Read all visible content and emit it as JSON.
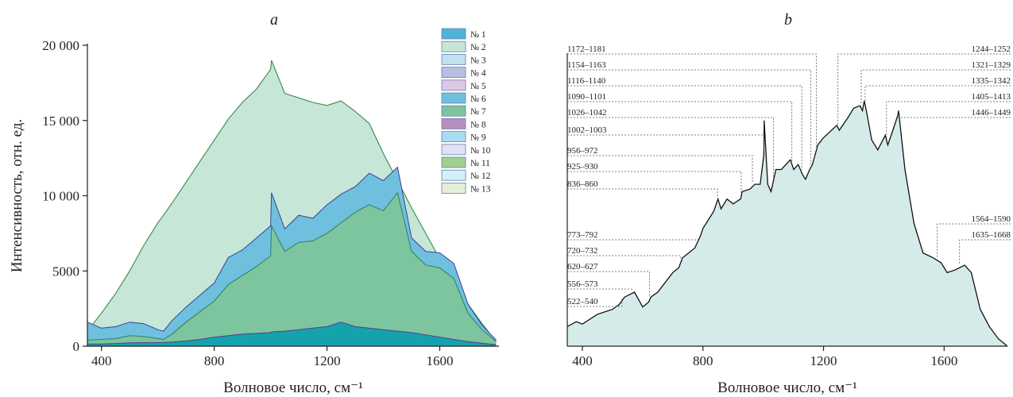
{
  "chart_data": [
    {
      "type": "area",
      "title": "a",
      "xlabel": "Волновое число, см⁻¹",
      "ylabel": "Интенсивность, отн. ед.",
      "xlim": [
        350,
        1810
      ],
      "ylim": [
        0,
        20000
      ],
      "xticks": [
        "400",
        "800",
        "1200",
        "1600"
      ],
      "yticks": [
        "0",
        "5000",
        "10 000",
        "15 000",
        "20 000"
      ],
      "legend_position": "top-right",
      "series": [
        {
          "name": "№ 1",
          "color": "#4fb3d9"
        },
        {
          "name": "№ 2",
          "color": "#c6e7d8"
        },
        {
          "name": "№ 3",
          "color": "#bfe3ee"
        },
        {
          "name": "№ 4",
          "color": "#b9bfe3"
        },
        {
          "name": "№ 5",
          "color": "#ddc8e4"
        },
        {
          "name": "№ 6",
          "color": "#6fc0de"
        },
        {
          "name": "№ 7",
          "color": "#7cc59e"
        },
        {
          "name": "№ 8",
          "color": "#b88ec1"
        },
        {
          "name": "№ 9",
          "color": "#a7dcf2"
        },
        {
          "name": "№ 10",
          "color": "#e2e2f2"
        },
        {
          "name": "№ 11",
          "color": "#9ed28e"
        },
        {
          "name": "№ 12",
          "color": "#d3effa"
        },
        {
          "name": "№ 13",
          "color": "#e3f0d7"
        }
      ],
      "curves": {
        "x": [
          350,
          400,
          450,
          500,
          550,
          600,
          620,
          650,
          700,
          750,
          800,
          850,
          900,
          950,
          1000,
          1003,
          1050,
          1100,
          1150,
          1200,
          1250,
          1300,
          1350,
          1400,
          1450,
          1500,
          1550,
          1600,
          1650,
          1700,
          1750,
          1800
        ],
        "upper": [
          1000,
          2200,
          3500,
          5000,
          6700,
          8200,
          8700,
          9500,
          10900,
          12300,
          13700,
          15100,
          16200,
          17100,
          18400,
          19000,
          16800,
          16500,
          16200,
          16000,
          16300,
          15600,
          14800,
          12800,
          11000,
          9200,
          7500,
          5800,
          4200,
          2800,
          1500,
          300
        ],
        "stack_top": [
          1600,
          1200,
          1300,
          1600,
          1500,
          1100,
          1000,
          1700,
          2600,
          3400,
          4200,
          5900,
          6400,
          7200,
          8000,
          10200,
          7800,
          8700,
          8500,
          9400,
          10100,
          10600,
          11500,
          11000,
          11900,
          7200,
          6300,
          6200,
          5500,
          2800,
          1400,
          400
        ],
        "green_top": [
          400,
          450,
          500,
          700,
          650,
          500,
          450,
          800,
          1600,
          2300,
          3000,
          4100,
          4700,
          5300,
          6000,
          8000,
          6300,
          6900,
          7000,
          7500,
          8200,
          8900,
          9400,
          9000,
          10200,
          6300,
          5400,
          5200,
          4500,
          2200,
          1100,
          300
        ],
        "base_top": [
          150,
          150,
          180,
          220,
          230,
          240,
          250,
          280,
          350,
          450,
          600,
          700,
          800,
          850,
          900,
          950,
          1000,
          1100,
          1200,
          1300,
          1600,
          1300,
          1200,
          1100,
          1000,
          900,
          750,
          600,
          450,
          300,
          200,
          100
        ]
      }
    },
    {
      "type": "area",
      "title": "b",
      "xlabel": "Волновое число, см⁻¹",
      "xlim": [
        350,
        1810
      ],
      "xticks": [
        "400",
        "800",
        "1200",
        "1600"
      ],
      "x": [
        350,
        380,
        400,
        450,
        500,
        522,
        540,
        556,
        573,
        600,
        620,
        627,
        650,
        700,
        720,
        732,
        773,
        792,
        800,
        836,
        850,
        860,
        880,
        900,
        925,
        930,
        956,
        972,
        990,
        1002,
        1003,
        1015,
        1026,
        1042,
        1060,
        1090,
        1101,
        1116,
        1130,
        1140,
        1154,
        1163,
        1172,
        1181,
        1200,
        1244,
        1252,
        1280,
        1300,
        1321,
        1329,
        1335,
        1342,
        1360,
        1380,
        1405,
        1413,
        1430,
        1446,
        1449,
        1470,
        1500,
        1530,
        1564,
        1590,
        1610,
        1635,
        1668,
        1690,
        1720,
        1750,
        1780,
        1810
      ],
      "y": [
        0.08,
        0.1,
        0.09,
        0.13,
        0.15,
        0.17,
        0.2,
        0.21,
        0.22,
        0.16,
        0.18,
        0.2,
        0.22,
        0.3,
        0.32,
        0.36,
        0.4,
        0.45,
        0.48,
        0.55,
        0.6,
        0.56,
        0.6,
        0.58,
        0.6,
        0.63,
        0.64,
        0.66,
        0.66,
        0.78,
        0.92,
        0.66,
        0.63,
        0.72,
        0.72,
        0.76,
        0.72,
        0.74,
        0.7,
        0.68,
        0.72,
        0.74,
        0.78,
        0.82,
        0.85,
        0.9,
        0.88,
        0.93,
        0.97,
        0.98,
        0.96,
        1.0,
        0.96,
        0.84,
        0.8,
        0.86,
        0.82,
        0.88,
        0.94,
        0.96,
        0.72,
        0.5,
        0.38,
        0.36,
        0.34,
        0.3,
        0.31,
        0.33,
        0.3,
        0.15,
        0.08,
        0.03,
        0.0
      ],
      "annotations": [
        "1172–1181",
        "1154–1163",
        "1116–1140",
        "1090–1101",
        "1026–1042",
        "1002–1003",
        "956–972",
        "925–930",
        "836–860",
        "773–792",
        "720–732",
        "620–627",
        "556–573",
        "522–540",
        "1244–1252",
        "1321–1329",
        "1335–1342",
        "1405–1413",
        "1446–1449",
        "1564–1590",
        "1635–1668"
      ]
    }
  ]
}
